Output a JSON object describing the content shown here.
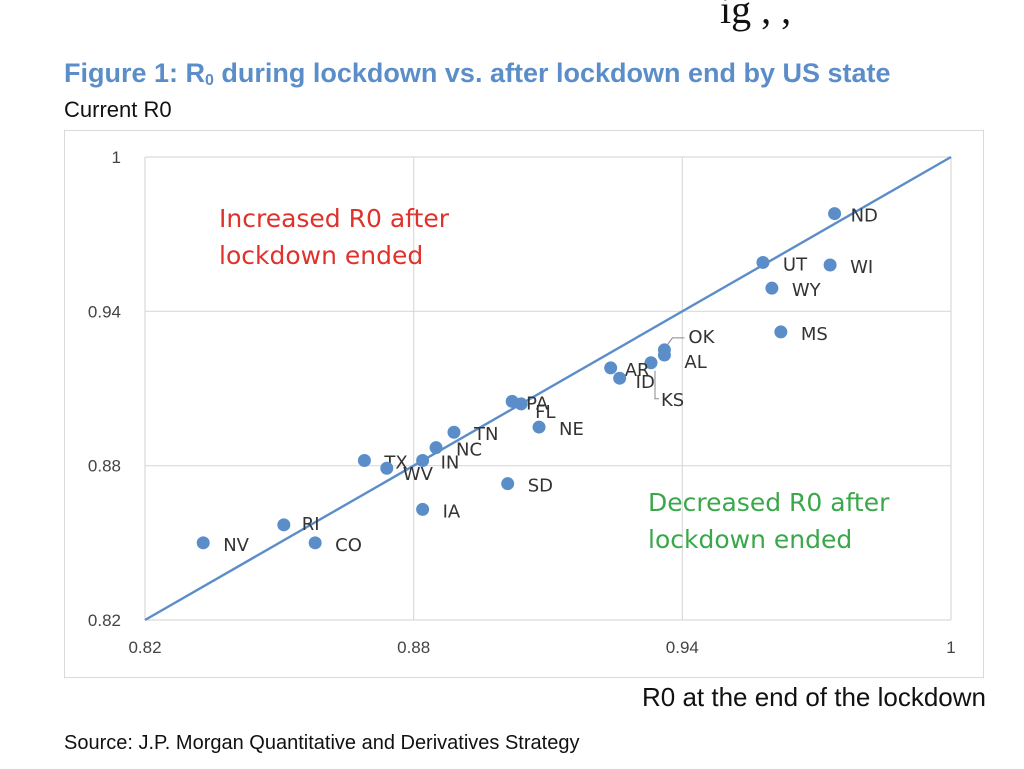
{
  "header_fragment": "ig    ,    ,",
  "chart_data": {
    "type": "scatter",
    "title_main": "Figure 1: R",
    "title_sub": "0",
    "title_rest": " during lockdown vs. after lockdown end by US state",
    "ylabel": "Current R0",
    "xlabel": "R0 at the end of the lockdown",
    "xlim": [
      0.82,
      1
    ],
    "ylim": [
      0.82,
      1
    ],
    "xticks": [
      "0.82",
      "0.88",
      "0.94",
      "1"
    ],
    "yticks": [
      "0.82",
      "0.88",
      "0.94",
      "1"
    ],
    "grid": true,
    "series_color": "#5b8ec9",
    "reference_line": {
      "from": [
        0.82,
        0.82
      ],
      "to": [
        1,
        1
      ]
    },
    "points": [
      {
        "label": "ND",
        "x": 0.974,
        "y": 0.978
      },
      {
        "label": "UT",
        "x": 0.958,
        "y": 0.959
      },
      {
        "label": "WI",
        "x": 0.973,
        "y": 0.958
      },
      {
        "label": "WY",
        "x": 0.96,
        "y": 0.949
      },
      {
        "label": "MS",
        "x": 0.962,
        "y": 0.932
      },
      {
        "label": "OK",
        "x": 0.936,
        "y": 0.925
      },
      {
        "label": "AL",
        "x": 0.936,
        "y": 0.923
      },
      {
        "label": "KS",
        "x": 0.933,
        "y": 0.92
      },
      {
        "label": "AR",
        "x": 0.924,
        "y": 0.918
      },
      {
        "label": "ID",
        "x": 0.926,
        "y": 0.914
      },
      {
        "label": "PA",
        "x": 0.902,
        "y": 0.905
      },
      {
        "label": "FL",
        "x": 0.904,
        "y": 0.904
      },
      {
        "label": "NE",
        "x": 0.908,
        "y": 0.895
      },
      {
        "label": "TN",
        "x": 0.889,
        "y": 0.893
      },
      {
        "label": "NC",
        "x": 0.885,
        "y": 0.887
      },
      {
        "label": "TX",
        "x": 0.869,
        "y": 0.882
      },
      {
        "label": "WV",
        "x": 0.874,
        "y": 0.879
      },
      {
        "label": "IN",
        "x": 0.882,
        "y": 0.882
      },
      {
        "label": "SD",
        "x": 0.901,
        "y": 0.873
      },
      {
        "label": "IA",
        "x": 0.882,
        "y": 0.863
      },
      {
        "label": "RI",
        "x": 0.851,
        "y": 0.857
      },
      {
        "label": "NV",
        "x": 0.833,
        "y": 0.85
      },
      {
        "label": "CO",
        "x": 0.858,
        "y": 0.85
      }
    ],
    "annotations": [
      {
        "name": "increased-annotation",
        "lines": [
          "Increased R0 after",
          "lockdown ended"
        ],
        "color": "#e0312b"
      },
      {
        "name": "decreased-annotation",
        "lines": [
          "Decreased R0 after",
          "lockdown ended"
        ],
        "color": "#3aa84a"
      }
    ]
  },
  "source": "Source: J.P. Morgan Quantitative and Derivatives Strategy"
}
